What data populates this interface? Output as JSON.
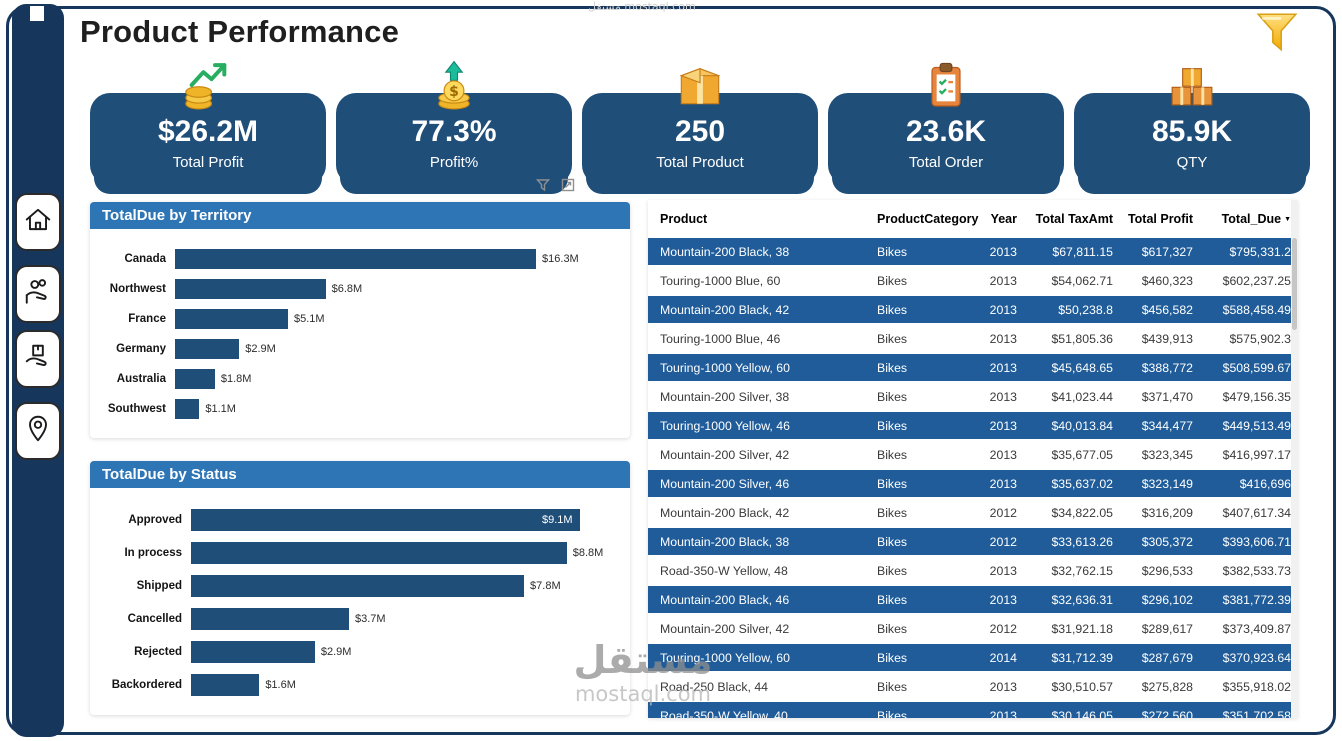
{
  "header": {
    "title": "Product Performance"
  },
  "colors": {
    "navy": "#16365C",
    "kpi_card": "#1F4E79",
    "chart_header": "#2E75B6",
    "table_row_highlight": "#1F5C99",
    "accent_gold": "#F5C542"
  },
  "sidebar": {
    "items": [
      {
        "icon": "home-icon"
      },
      {
        "icon": "hand-coins-icon"
      },
      {
        "icon": "hand-box-icon"
      },
      {
        "icon": "location-pin-icon"
      }
    ]
  },
  "kpis": [
    {
      "value": "$26.2M",
      "label": "Total Profit",
      "icon": "coins-growth-icon"
    },
    {
      "value": "77.3%",
      "label": "Profit%",
      "icon": "coin-up-icon"
    },
    {
      "value": "250",
      "label": "Total Product",
      "icon": "package-icon"
    },
    {
      "value": "23.6K",
      "label": "Total Order",
      "icon": "clipboard-icon"
    },
    {
      "value": "85.9K",
      "label": "QTY",
      "icon": "boxes-icon"
    }
  ],
  "chart_data": [
    {
      "type": "bar",
      "orientation": "horizontal",
      "title": "TotalDue by Territory",
      "categories": [
        "Canada",
        "Northwest",
        "France",
        "Germany",
        "Australia",
        "Southwest"
      ],
      "values": [
        16.3,
        6.8,
        5.1,
        2.9,
        1.8,
        1.1
      ],
      "labels": [
        "$16.3M",
        "$6.8M",
        "$5.1M",
        "$2.9M",
        "$1.8M",
        "$1.1M"
      ],
      "unit": "M USD",
      "xlim": [
        0,
        20
      ],
      "grid": false,
      "legend": false
    },
    {
      "type": "bar",
      "orientation": "horizontal",
      "title": "TotalDue by Status",
      "categories": [
        "Approved",
        "In process",
        "Shipped",
        "Cancelled",
        "Rejected",
        "Backordered"
      ],
      "values": [
        9.1,
        8.8,
        7.8,
        3.7,
        2.9,
        1.6
      ],
      "labels": [
        "$9.1M",
        "$8.8M",
        "$7.8M",
        "$3.7M",
        "$2.9M",
        "$1.6M"
      ],
      "unit": "M USD",
      "xlim": [
        0,
        10
      ],
      "grid": false,
      "legend": false
    }
  ],
  "table": {
    "columns": [
      "Product",
      "ProductCategory",
      "Year",
      "Total TaxAmt",
      "Total Profit",
      "Total_Due"
    ],
    "sort": {
      "column": "Total_Due",
      "direction": "desc"
    },
    "rows": [
      [
        "Mountain-200 Black, 38",
        "Bikes",
        "2013",
        "$67,811.15",
        "$617,327",
        "$795,331.2"
      ],
      [
        "Touring-1000 Blue, 60",
        "Bikes",
        "2013",
        "$54,062.71",
        "$460,323",
        "$602,237.25"
      ],
      [
        "Mountain-200 Black, 42",
        "Bikes",
        "2013",
        "$50,238.8",
        "$456,582",
        "$588,458.49"
      ],
      [
        "Touring-1000 Blue, 46",
        "Bikes",
        "2013",
        "$51,805.36",
        "$439,913",
        "$575,902.3"
      ],
      [
        "Touring-1000 Yellow, 60",
        "Bikes",
        "2013",
        "$45,648.65",
        "$388,772",
        "$508,599.67"
      ],
      [
        "Mountain-200 Silver, 38",
        "Bikes",
        "2013",
        "$41,023.44",
        "$371,470",
        "$479,156.35"
      ],
      [
        "Touring-1000 Yellow, 46",
        "Bikes",
        "2013",
        "$40,013.84",
        "$344,477",
        "$449,513.49"
      ],
      [
        "Mountain-200 Silver, 42",
        "Bikes",
        "2013",
        "$35,677.05",
        "$323,345",
        "$416,997.17"
      ],
      [
        "Mountain-200 Silver, 46",
        "Bikes",
        "2013",
        "$35,637.02",
        "$323,149",
        "$416,696"
      ],
      [
        "Mountain-200 Black, 42",
        "Bikes",
        "2012",
        "$34,822.05",
        "$316,209",
        "$407,617.34"
      ],
      [
        "Mountain-200 Black, 38",
        "Bikes",
        "2012",
        "$33,613.26",
        "$305,372",
        "$393,606.71"
      ],
      [
        "Road-350-W Yellow, 48",
        "Bikes",
        "2013",
        "$32,762.15",
        "$296,533",
        "$382,533.73"
      ],
      [
        "Mountain-200 Black, 46",
        "Bikes",
        "2013",
        "$32,636.31",
        "$296,102",
        "$381,772.39"
      ],
      [
        "Mountain-200 Silver, 42",
        "Bikes",
        "2012",
        "$31,921.18",
        "$289,617",
        "$373,409.87"
      ],
      [
        "Touring-1000 Yellow, 60",
        "Bikes",
        "2014",
        "$31,712.39",
        "$287,679",
        "$370,923.64"
      ],
      [
        "Road-250 Black, 44",
        "Bikes",
        "2013",
        "$30,510.57",
        "$275,828",
        "$355,918.02"
      ],
      [
        "Road-350-W Yellow, 40",
        "Bikes",
        "2013",
        "$30,146.05",
        "$272,560",
        "$351,702.58"
      ]
    ]
  },
  "watermark": {
    "arabic": "مستقل",
    "site": "mostaql.com",
    "top_text": "مستقل mostaql.com"
  }
}
